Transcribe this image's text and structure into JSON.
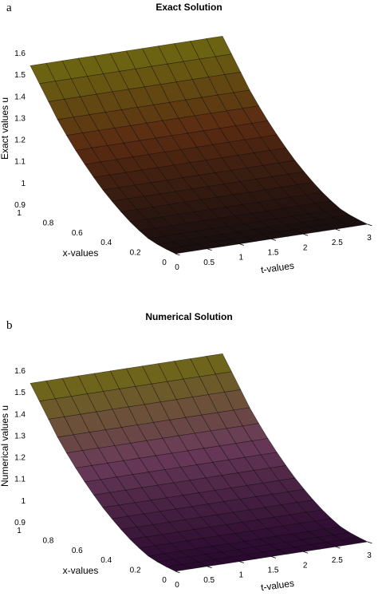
{
  "chart_data": [
    {
      "type": "surface",
      "panel_label": "a",
      "title": "Exact Solution",
      "xlabel": "t-values",
      "ylabel": "x-values",
      "zlabel": "Exact values u",
      "t_ticks": [
        "0",
        "0.5",
        "1",
        "1.5",
        "2",
        "2.5",
        "3"
      ],
      "x_ticks": [
        "0",
        "0.2",
        "0.4",
        "0.6",
        "0.8",
        "1"
      ],
      "z_ticks": [
        "0.9",
        "1",
        "1.1",
        "1.2",
        "1.3",
        "1.4",
        "1.5",
        "1.6"
      ],
      "t_range": [
        0,
        3
      ],
      "x_range": [
        0,
        1
      ],
      "z_range": [
        0.9,
        1.6
      ],
      "surface_note": "u rises from about 0.9 at x=0 to about 1.54 at x=1, nearly constant along t",
      "u_vs_x": {
        "x": [
          0,
          0.1,
          0.2,
          0.3,
          0.4,
          0.5,
          0.6,
          0.7,
          0.8,
          0.9,
          1.0
        ],
        "u": [
          0.9,
          0.91,
          0.93,
          0.97,
          1.02,
          1.08,
          1.15,
          1.23,
          1.32,
          1.43,
          1.54
        ]
      },
      "colors": {
        "high": "#6e6b12",
        "mid": "#5a2a12",
        "low": "#1a0f0f"
      }
    },
    {
      "type": "surface",
      "panel_label": "b",
      "title": "Numerical Solution",
      "xlabel": "t-values",
      "ylabel": "x-values",
      "zlabel": "Numerical values u",
      "t_ticks": [
        "0",
        "0.5",
        "1",
        "1.5",
        "2",
        "2.5",
        "3"
      ],
      "x_ticks": [
        "0",
        "0.2",
        "0.4",
        "0.6",
        "0.8",
        "1"
      ],
      "z_ticks": [
        "0.9",
        "1",
        "1.1",
        "1.2",
        "1.3",
        "1.4",
        "1.5",
        "1.6"
      ],
      "t_range": [
        0,
        3
      ],
      "x_range": [
        0,
        1
      ],
      "z_range": [
        0.9,
        1.6
      ],
      "surface_note": "u rises from about 0.9 at x=0 to about 1.54 at x=1, nearly constant along t",
      "u_vs_x": {
        "x": [
          0,
          0.1,
          0.2,
          0.3,
          0.4,
          0.5,
          0.6,
          0.7,
          0.8,
          0.9,
          1.0
        ],
        "u": [
          0.9,
          0.91,
          0.93,
          0.97,
          1.02,
          1.08,
          1.15,
          1.23,
          1.32,
          1.43,
          1.54
        ]
      },
      "colors": {
        "high": "#6f6a14",
        "mid": "#6a3a58",
        "low": "#2a0a30"
      }
    }
  ]
}
